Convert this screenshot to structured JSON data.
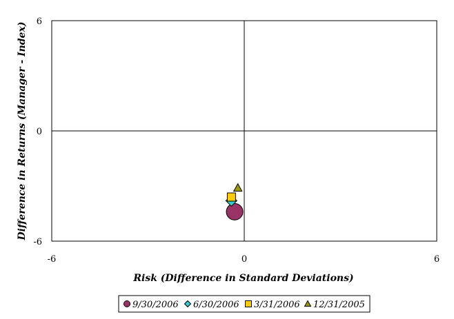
{
  "chart_data": {
    "type": "scatter",
    "title": "",
    "xlabel": "Risk (Difference in Standard Deviations)",
    "ylabel": "Difference in Returns (Manager - Index)",
    "xlim": [
      -6,
      6
    ],
    "ylim": [
      -6,
      6
    ],
    "xticks": [
      "-6",
      "0",
      "6"
    ],
    "yticks": [
      "6",
      "0",
      "-6"
    ],
    "grid": false,
    "legend_position": "bottom",
    "series": [
      {
        "name": "9/30/2006",
        "marker": "circle",
        "color": "#993366",
        "x": -0.3,
        "y": -4.4
      },
      {
        "name": "6/30/2006",
        "marker": "diamond",
        "color": "#33cccc",
        "x": -0.4,
        "y": -3.8
      },
      {
        "name": "3/31/2006",
        "marker": "square",
        "color": "#ffcc00",
        "x": -0.4,
        "y": -3.6
      },
      {
        "name": "12/31/2005",
        "marker": "triangle",
        "color": "#999900",
        "x": -0.2,
        "y": -3.1
      }
    ]
  }
}
